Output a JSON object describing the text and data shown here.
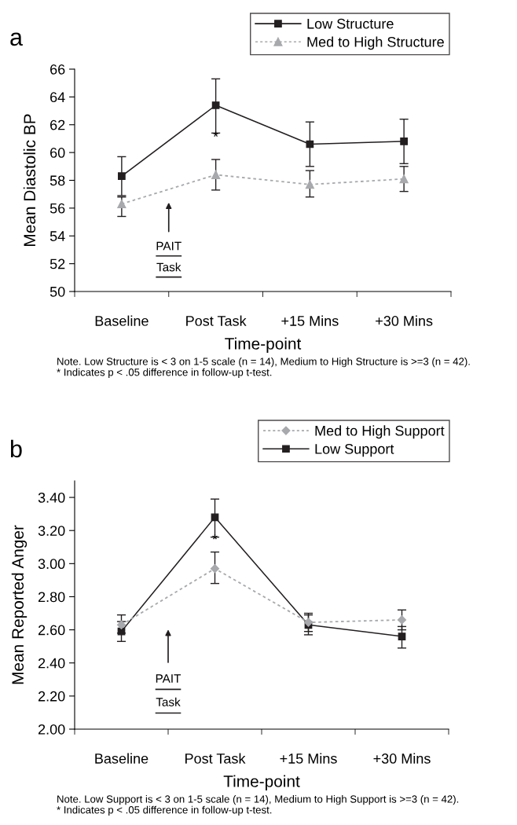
{
  "chart_data": [
    {
      "type": "line",
      "title": "a",
      "xlabel": "Time-point",
      "ylabel": "Mean Diastolic BP",
      "categories": [
        "Baseline",
        "Post Task",
        "+15 Mins",
        "+30 Mins"
      ],
      "series": [
        {
          "name": "Low Structure",
          "color": "#231f20",
          "marker": "square",
          "line_style": "solid",
          "values": [
            58.3,
            63.4,
            60.6,
            60.8
          ],
          "errors": [
            [
              56.9,
              59.7
            ],
            [
              61.4,
              65.3
            ],
            [
              59.0,
              62.2
            ],
            [
              59.2,
              62.4
            ]
          ]
        },
        {
          "name": "Med to High Structure",
          "color": "#a7a9ac",
          "marker": "triangle",
          "line_style": "dotted",
          "values": [
            56.3,
            58.4,
            57.7,
            58.1
          ],
          "errors": [
            [
              55.4,
              56.8
            ],
            [
              57.3,
              59.5
            ],
            [
              56.8,
              58.7
            ],
            [
              57.2,
              59.0
            ]
          ]
        }
      ],
      "ylim": [
        50,
        66
      ],
      "yticks": [
        50,
        52,
        54,
        56,
        58,
        60,
        62,
        64,
        66
      ],
      "grid": false,
      "legend": "top right",
      "annotations": [
        "*",
        "PAIT\nTask",
        "Note. Low Structure is < 3 on 1-5 scale (n = 14), Medium to High Structure is >=3 (n = 42).\n* Indicates p < .05 difference in follow-up t-test."
      ]
    },
    {
      "type": "line",
      "title": "b",
      "xlabel": "Time-point",
      "ylabel": "Mean Reported Anger",
      "categories": [
        "Baseline",
        "Post Task",
        "+15 Mins",
        "+30 Mins"
      ],
      "series": [
        {
          "name": "Med to High Support",
          "color": "#a7a9ac",
          "marker": "diamond",
          "line_style": "dotted",
          "values": [
            2.63,
            2.97,
            2.645,
            2.66
          ],
          "errors": [
            [
              2.58,
              2.69
            ],
            [
              2.88,
              3.07
            ],
            [
              2.59,
              2.7
            ],
            [
              2.6,
              2.72
            ]
          ]
        },
        {
          "name": "Low Support",
          "color": "#231f20",
          "marker": "square",
          "line_style": "solid",
          "values": [
            2.59,
            3.28,
            2.63,
            2.56
          ],
          "errors": [
            [
              2.53,
              2.65
            ],
            [
              3.16,
              3.39
            ],
            [
              2.57,
              2.69
            ],
            [
              2.49,
              2.62
            ]
          ]
        }
      ],
      "ylim": [
        2.0,
        3.5
      ],
      "yticks": [
        {
          "value": 2.0,
          "label": "2.00"
        },
        {
          "value": 2.2,
          "label": "2.20"
        },
        {
          "value": 2.4,
          "label": "2.40"
        },
        {
          "value": 2.6,
          "label": "2.60"
        },
        {
          "value": 2.8,
          "label": "2.80"
        },
        {
          "value": 3.0,
          "label": "3.00"
        },
        {
          "value": 3.2,
          "label": "3.20"
        },
        {
          "value": 3.4,
          "label": "3.40"
        }
      ],
      "grid": false,
      "legend": "top right",
      "annotations": [
        "*",
        "PAIT\nTask",
        "Note. Low Support is < 3 on 1-5 scale (n = 14), Medium to High Support is >=3 (n = 42).\n* Indicates p < .05 difference in follow-up t-test."
      ]
    }
  ]
}
